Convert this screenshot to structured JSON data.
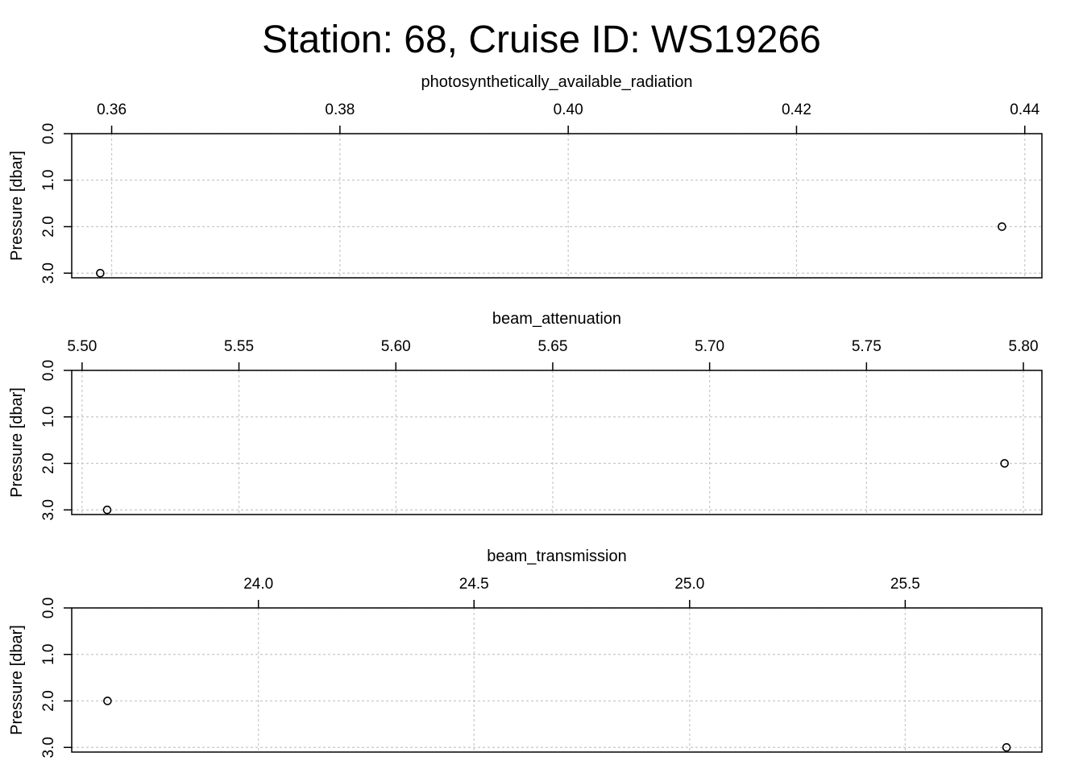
{
  "title": "Station: 68, Cruise ID: WS19266",
  "chart_data": [
    {
      "type": "scatter",
      "title": "photosynthetically_available_radiation",
      "ylabel": "Pressure [dbar]",
      "x_ticks": [
        "0.36",
        "0.38",
        "0.40",
        "0.42",
        "0.44"
      ],
      "y_ticks": [
        "0.0",
        "1.0",
        "2.0",
        "3.0"
      ],
      "xlim": [
        0.3565,
        0.4415
      ],
      "ylim": [
        3.1,
        0.0
      ],
      "y_reversed": true,
      "grid": true,
      "points": [
        {
          "x": 0.359,
          "y": 3.0
        },
        {
          "x": 0.438,
          "y": 2.0
        }
      ]
    },
    {
      "type": "scatter",
      "title": "beam_attenuation",
      "ylabel": "Pressure [dbar]",
      "x_ticks": [
        "5.50",
        "5.55",
        "5.60",
        "5.65",
        "5.70",
        "5.75",
        "5.80"
      ],
      "y_ticks": [
        "0.0",
        "1.0",
        "2.0",
        "3.0"
      ],
      "xlim": [
        5.4967,
        5.8059
      ],
      "ylim": [
        3.1,
        0.0
      ],
      "y_reversed": true,
      "grid": true,
      "points": [
        {
          "x": 5.508,
          "y": 3.0
        },
        {
          "x": 5.794,
          "y": 2.0
        }
      ]
    },
    {
      "type": "scatter",
      "title": "beam_transmission",
      "ylabel": "Pressure [dbar]",
      "x_ticks": [
        "24.0",
        "24.5",
        "25.0",
        "25.5"
      ],
      "y_ticks": [
        "0.0",
        "1.0",
        "2.0",
        "3.0"
      ],
      "xlim": [
        23.567,
        25.817
      ],
      "ylim": [
        3.1,
        0.0
      ],
      "y_reversed": true,
      "grid": true,
      "points": [
        {
          "x": 23.65,
          "y": 2.0
        },
        {
          "x": 25.735,
          "y": 3.0
        }
      ]
    }
  ]
}
